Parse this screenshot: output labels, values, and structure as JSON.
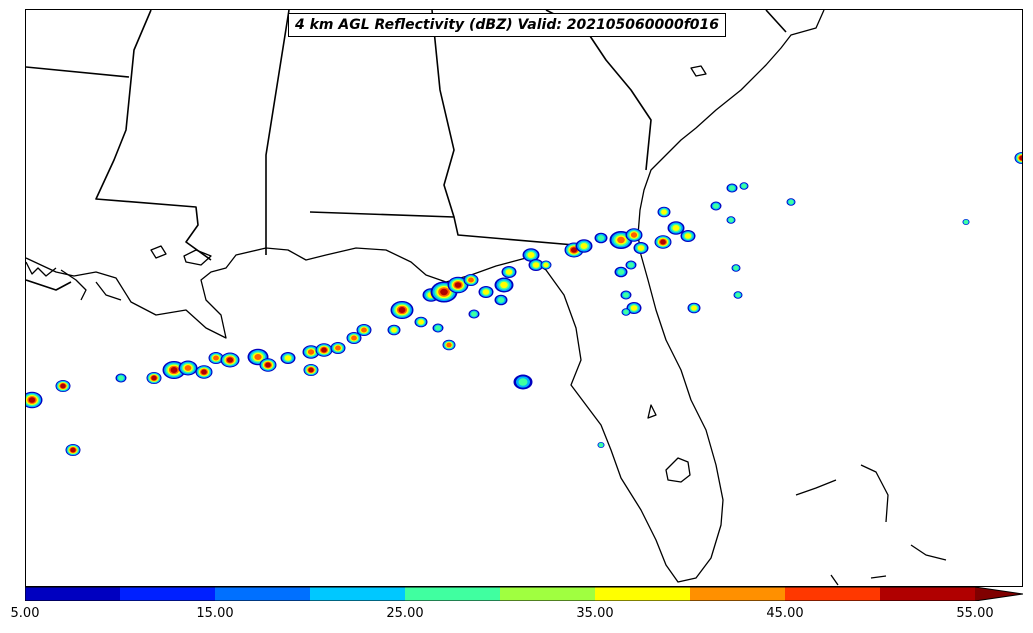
{
  "title": "4 km AGL Reflectivity (dBZ) Valid: 202105060000f016",
  "colorbar": {
    "levels": [
      5,
      10,
      15,
      20,
      25,
      30,
      35,
      40,
      45,
      50,
      55
    ],
    "colors": [
      "#0000c0",
      "#0020ff",
      "#0070ff",
      "#00c8ff",
      "#40ffa0",
      "#a0ff40",
      "#ffff00",
      "#ff9000",
      "#ff3800",
      "#b00000"
    ],
    "extend_color": "#800000",
    "tick_labels": [
      "5.00",
      "15.00",
      "25.00",
      "35.00",
      "45.00",
      "55.00"
    ]
  },
  "colors": {
    "boundary": "#000000",
    "core": "#b00000"
  }
}
